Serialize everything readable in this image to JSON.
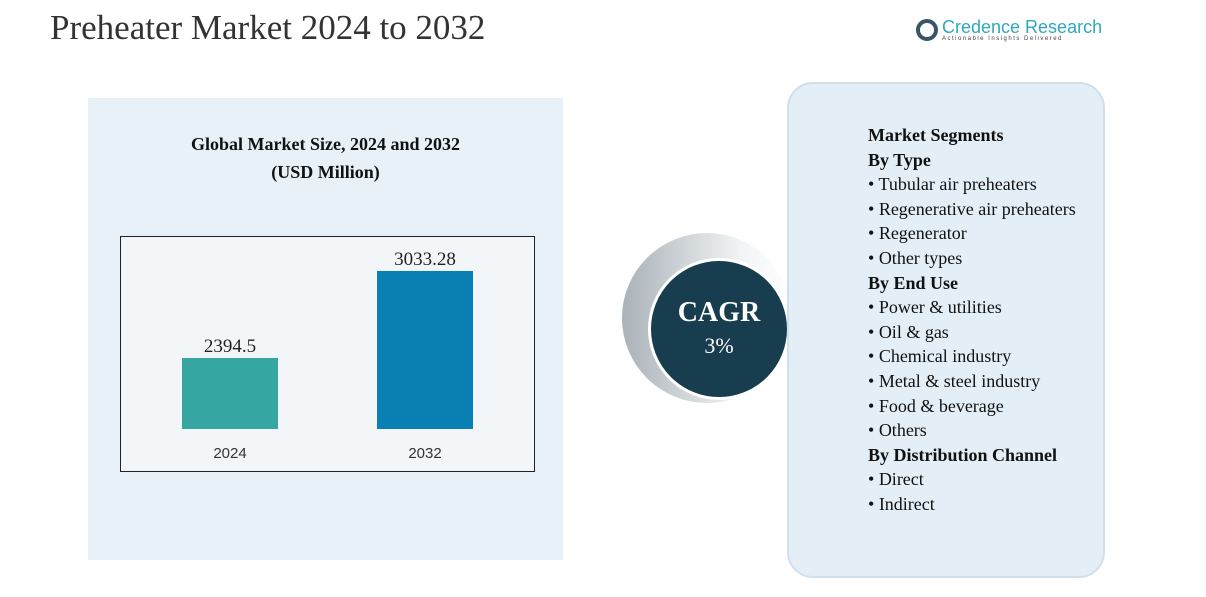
{
  "header": {
    "title": "Preheater Market 2024 to 2032",
    "logo_name": "Credence Research",
    "logo_tagline": "Actionable Insights Delivered"
  },
  "chart_data": {
    "type": "bar",
    "title": "Global Market Size, 2024 and 2032",
    "subtitle": "(USD Million)",
    "categories": [
      "2024",
      "2032"
    ],
    "values": [
      2394.5,
      3033.28
    ],
    "value_labels": [
      "2394.5",
      "3033.28"
    ],
    "colors": [
      "#35a6a1",
      "#0a7fb3"
    ],
    "ylim": [
      1873,
      3224
    ],
    "xlabel": "",
    "ylabel": ""
  },
  "cagr": {
    "label": "CAGR",
    "value": "3%"
  },
  "segments": {
    "title": "Market Segments",
    "groups": [
      {
        "heading": "By Type",
        "items": [
          "Tubular air preheaters",
          "Regenerative air preheaters",
          "Regenerator",
          "Other types"
        ]
      },
      {
        "heading": "By End Use",
        "items": [
          "Power & utilities",
          "Oil & gas",
          "Chemical industry",
          "Metal & steel industry",
          "Food & beverage",
          "Others"
        ]
      },
      {
        "heading": "By Distribution Channel",
        "items": [
          "Direct",
          "Indirect"
        ]
      }
    ]
  }
}
